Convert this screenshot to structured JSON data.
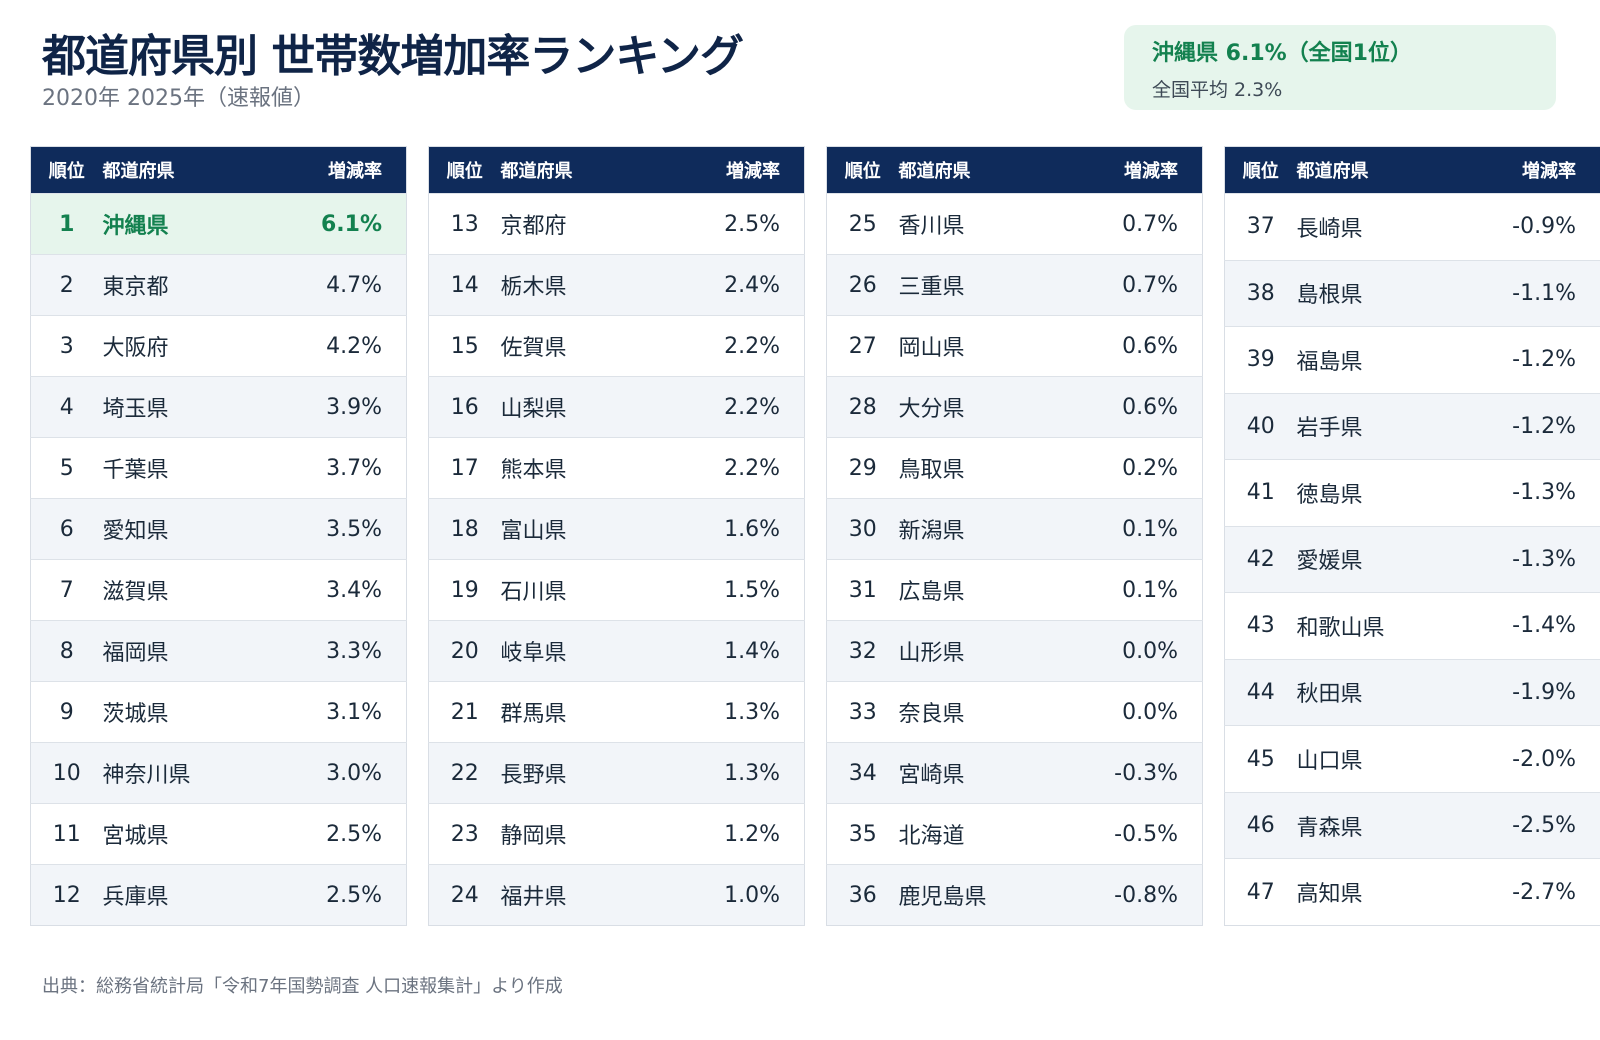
{
  "header": {
    "title": "都道府県別 世帯数増加率ランキング",
    "subtitle": "2020年  2025年（速報値）"
  },
  "highlight": {
    "main": "沖縄県 6.1%（全国1位）",
    "sub": "全国平均 2.3%"
  },
  "table_headers": {
    "rank": "順位",
    "prefecture": "都道府県",
    "rate": "増減率"
  },
  "columns": [
    {
      "rows": [
        {
          "rank": "1",
          "prefecture": "沖縄県",
          "rate": "6.1%"
        },
        {
          "rank": "2",
          "prefecture": "東京都",
          "rate": "4.7%"
        },
        {
          "rank": "3",
          "prefecture": "大阪府",
          "rate": "4.2%"
        },
        {
          "rank": "4",
          "prefecture": "埼玉県",
          "rate": "3.9%"
        },
        {
          "rank": "5",
          "prefecture": "千葉県",
          "rate": "3.7%"
        },
        {
          "rank": "6",
          "prefecture": "愛知県",
          "rate": "3.5%"
        },
        {
          "rank": "7",
          "prefecture": "滋賀県",
          "rate": "3.4%"
        },
        {
          "rank": "8",
          "prefecture": "福岡県",
          "rate": "3.3%"
        },
        {
          "rank": "9",
          "prefecture": "茨城県",
          "rate": "3.1%"
        },
        {
          "rank": "10",
          "prefecture": "神奈川県",
          "rate": "3.0%"
        },
        {
          "rank": "11",
          "prefecture": "宮城県",
          "rate": "2.5%"
        },
        {
          "rank": "12",
          "prefecture": "兵庫県",
          "rate": "2.5%"
        }
      ]
    },
    {
      "rows": [
        {
          "rank": "13",
          "prefecture": "京都府",
          "rate": "2.5%"
        },
        {
          "rank": "14",
          "prefecture": "栃木県",
          "rate": "2.4%"
        },
        {
          "rank": "15",
          "prefecture": "佐賀県",
          "rate": "2.2%"
        },
        {
          "rank": "16",
          "prefecture": "山梨県",
          "rate": "2.2%"
        },
        {
          "rank": "17",
          "prefecture": "熊本県",
          "rate": "2.2%"
        },
        {
          "rank": "18",
          "prefecture": "富山県",
          "rate": "1.6%"
        },
        {
          "rank": "19",
          "prefecture": "石川県",
          "rate": "1.5%"
        },
        {
          "rank": "20",
          "prefecture": "岐阜県",
          "rate": "1.4%"
        },
        {
          "rank": "21",
          "prefecture": "群馬県",
          "rate": "1.3%"
        },
        {
          "rank": "22",
          "prefecture": "長野県",
          "rate": "1.3%"
        },
        {
          "rank": "23",
          "prefecture": "静岡県",
          "rate": "1.2%"
        },
        {
          "rank": "24",
          "prefecture": "福井県",
          "rate": "1.0%"
        }
      ]
    },
    {
      "rows": [
        {
          "rank": "25",
          "prefecture": "香川県",
          "rate": "0.7%"
        },
        {
          "rank": "26",
          "prefecture": "三重県",
          "rate": "0.7%"
        },
        {
          "rank": "27",
          "prefecture": "岡山県",
          "rate": "0.6%"
        },
        {
          "rank": "28",
          "prefecture": "大分県",
          "rate": "0.6%"
        },
        {
          "rank": "29",
          "prefecture": "鳥取県",
          "rate": "0.2%"
        },
        {
          "rank": "30",
          "prefecture": "新潟県",
          "rate": "0.1%"
        },
        {
          "rank": "31",
          "prefecture": "広島県",
          "rate": "0.1%"
        },
        {
          "rank": "32",
          "prefecture": "山形県",
          "rate": "0.0%"
        },
        {
          "rank": "33",
          "prefecture": "奈良県",
          "rate": "0.0%"
        },
        {
          "rank": "34",
          "prefecture": "宮崎県",
          "rate": "-0.3%"
        },
        {
          "rank": "35",
          "prefecture": "北海道",
          "rate": "-0.5%"
        },
        {
          "rank": "36",
          "prefecture": "鹿児島県",
          "rate": "-0.8%"
        }
      ]
    },
    {
      "rows": [
        {
          "rank": "37",
          "prefecture": "長崎県",
          "rate": "-0.9%"
        },
        {
          "rank": "38",
          "prefecture": "島根県",
          "rate": "-1.1%"
        },
        {
          "rank": "39",
          "prefecture": "福島県",
          "rate": "-1.2%"
        },
        {
          "rank": "40",
          "prefecture": "岩手県",
          "rate": "-1.2%"
        },
        {
          "rank": "41",
          "prefecture": "徳島県",
          "rate": "-1.3%"
        },
        {
          "rank": "42",
          "prefecture": "愛媛県",
          "rate": "-1.3%"
        },
        {
          "rank": "43",
          "prefecture": "和歌山県",
          "rate": "-1.4%"
        },
        {
          "rank": "44",
          "prefecture": "秋田県",
          "rate": "-1.9%"
        },
        {
          "rank": "45",
          "prefecture": "山口県",
          "rate": "-2.0%"
        },
        {
          "rank": "46",
          "prefecture": "青森県",
          "rate": "-2.5%"
        },
        {
          "rank": "47",
          "prefecture": "高知県",
          "rate": "-2.7%"
        }
      ]
    }
  ],
  "footer": {
    "source": "出典：総務省統計局「令和7年国勢調査 人口速報集計」より作成"
  },
  "colors": {
    "header_bg": "#0f2b5b",
    "highlight_green": "#13814f",
    "highlight_bg": "#e6f5ec"
  }
}
